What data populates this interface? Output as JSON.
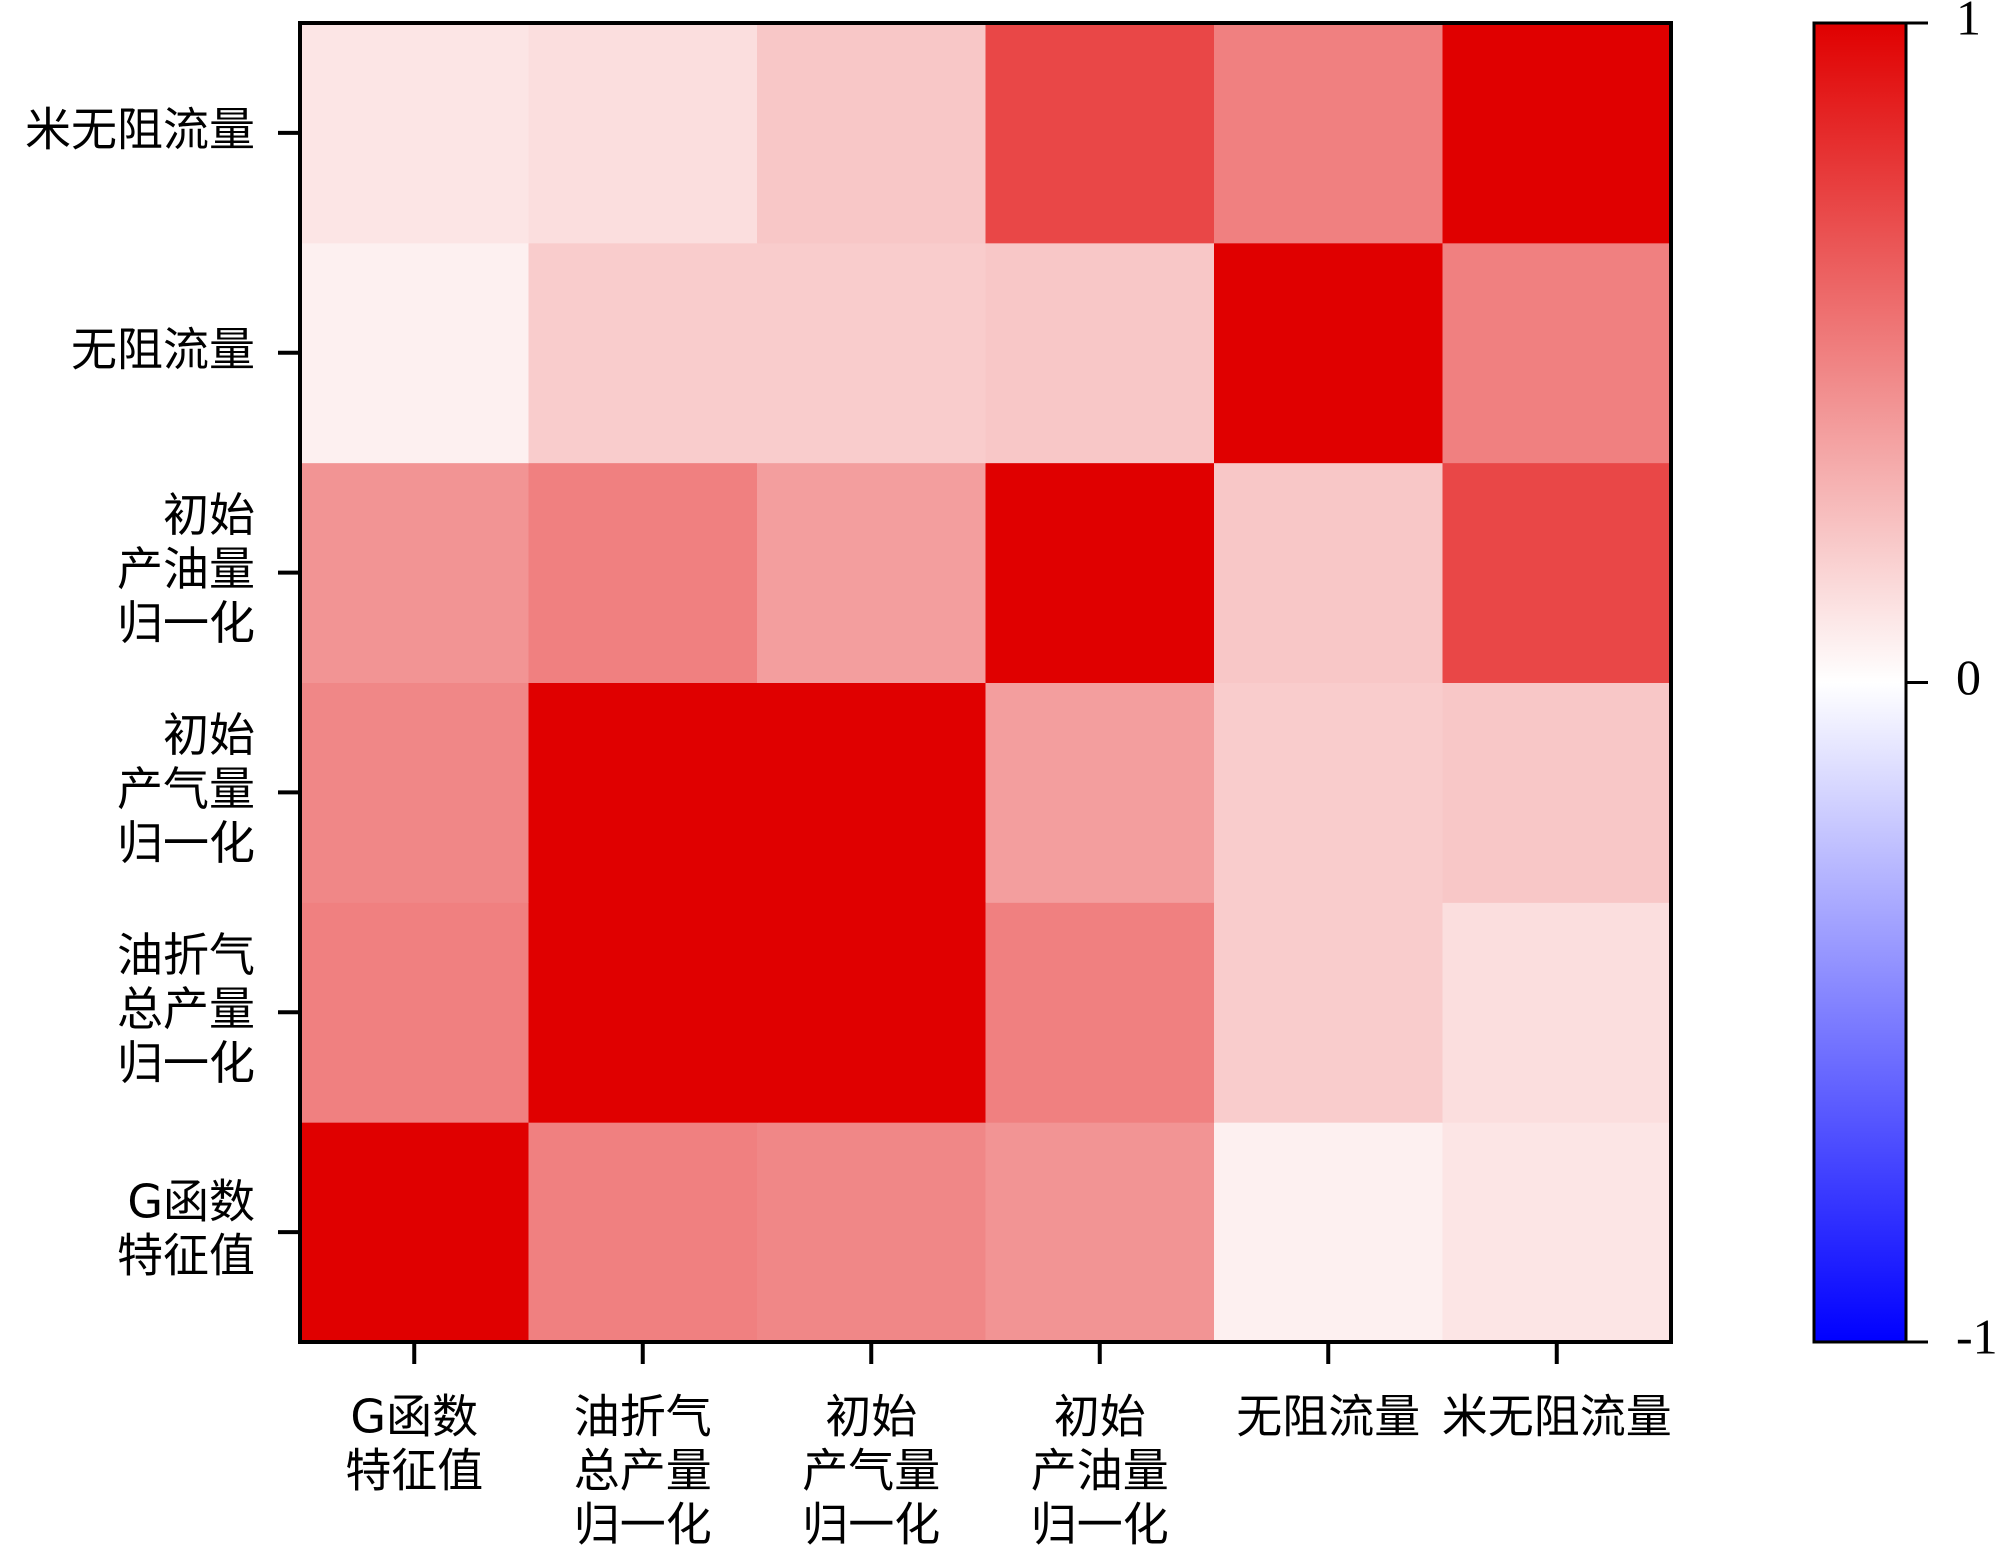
{
  "chart_data": {
    "type": "heatmap",
    "x_categories": [
      [
        "G函数",
        "特征值"
      ],
      [
        "油折气",
        "总产量",
        "归一化"
      ],
      [
        "初始",
        "产气量",
        "归一化"
      ],
      [
        "初始",
        "产油量",
        "归一化"
      ],
      [
        "无阻流量"
      ],
      [
        "米无阻流量"
      ]
    ],
    "y_categories": [
      [
        "G函数",
        "特征值"
      ],
      [
        "油折气",
        "总产量",
        "归一化"
      ],
      [
        "初始",
        "产气量",
        "归一化"
      ],
      [
        "初始",
        "产油量",
        "归一化"
      ],
      [
        "无阻流量"
      ],
      [
        "米无阻流量"
      ]
    ],
    "z": [
      [
        1,
        0.5,
        0.47,
        0.42,
        0.06,
        0.1
      ],
      [
        0.5,
        1,
        1,
        0.5,
        0.2,
        0.13
      ],
      [
        0.47,
        1,
        1,
        0.38,
        0.2,
        0.22
      ],
      [
        0.42,
        0.5,
        0.38,
        1,
        0.22,
        0.72
      ],
      [
        0.06,
        0.2,
        0.2,
        0.22,
        1,
        0.5
      ],
      [
        0.1,
        0.13,
        0.22,
        0.72,
        0.5,
        1
      ]
    ],
    "colormap": [
      "#0000ff",
      "#ffffff",
      "#e00000"
    ],
    "zlim": [
      -1,
      1
    ],
    "zticks": [
      -1,
      0,
      1
    ]
  }
}
